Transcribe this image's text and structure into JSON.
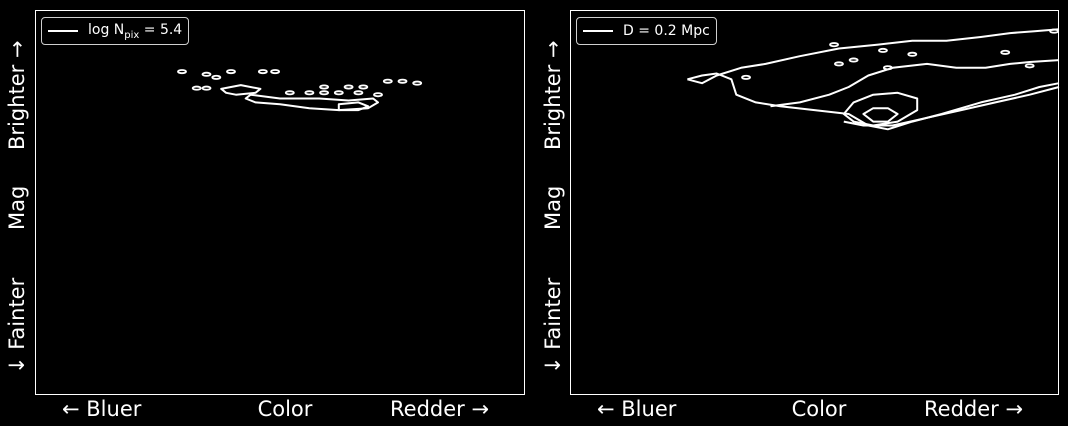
{
  "chart_data": [
    {
      "type": "contour",
      "legend": {
        "entry": "log N",
        "sub": "pix",
        "value": " = 5.4"
      },
      "xlabel": {
        "left": "← Bluer",
        "center": "Color",
        "right": "Redder →"
      },
      "ylabel": {
        "bottom": "↓ Fainter",
        "center": "Mag",
        "top": "Brighter →"
      },
      "line_color": "#ffffff",
      "background": "#000000",
      "grid": false,
      "legend_position": "top-left",
      "contours": [
        {
          "kind": "closed",
          "points": [
            [
              0.44,
              0.22
            ],
            [
              0.5,
              0.23
            ],
            [
              0.58,
              0.23
            ],
            [
              0.64,
              0.235
            ],
            [
              0.69,
              0.23
            ],
            [
              0.7,
              0.24
            ],
            [
              0.68,
              0.255
            ],
            [
              0.62,
              0.26
            ],
            [
              0.56,
              0.255
            ],
            [
              0.5,
              0.245
            ],
            [
              0.45,
              0.24
            ],
            [
              0.43,
              0.23
            ]
          ]
        },
        {
          "kind": "closed",
          "points": [
            [
              0.38,
              0.205
            ],
            [
              0.42,
              0.195
            ],
            [
              0.46,
              0.205
            ],
            [
              0.45,
              0.215
            ],
            [
              0.41,
              0.22
            ],
            [
              0.39,
              0.215
            ]
          ]
        },
        {
          "kind": "closed",
          "points": [
            [
              0.62,
              0.245
            ],
            [
              0.66,
              0.24
            ],
            [
              0.68,
              0.25
            ],
            [
              0.66,
              0.26
            ],
            [
              0.62,
              0.26
            ]
          ]
        },
        {
          "kind": "blob",
          "points": [
            [
              0.3,
              0.16
            ],
            [
              0.35,
              0.167
            ],
            [
              0.37,
              0.175
            ],
            [
              0.4,
              0.16
            ],
            [
              0.465,
              0.16
            ],
            [
              0.49,
              0.16
            ],
            [
              0.59,
              0.2
            ],
            [
              0.64,
              0.2
            ],
            [
              0.67,
              0.2
            ],
            [
              0.72,
              0.185
            ],
            [
              0.75,
              0.185
            ],
            [
              0.78,
              0.19
            ],
            [
              0.33,
              0.203
            ],
            [
              0.35,
              0.203
            ],
            [
              0.52,
              0.215
            ],
            [
              0.56,
              0.215
            ],
            [
              0.59,
              0.215
            ],
            [
              0.62,
              0.215
            ],
            [
              0.66,
              0.215
            ],
            [
              0.7,
              0.22
            ]
          ]
        }
      ]
    },
    {
      "type": "contour",
      "legend": {
        "entry": "D = 0.2 Mpc"
      },
      "xlabel": {
        "left": "← Bluer",
        "center": "Color",
        "right": "Redder →"
      },
      "ylabel": {
        "bottom": "↓ Fainter",
        "center": "Mag",
        "top": "Brighter →"
      },
      "line_color": "#ffffff",
      "background": "#000000",
      "grid": false,
      "legend_position": "top-left",
      "contours": [
        {
          "kind": "open",
          "points": [
            [
              0.24,
              0.18
            ],
            [
              0.27,
              0.17
            ],
            [
              0.3,
              0.165
            ],
            [
              0.33,
              0.18
            ],
            [
              0.34,
              0.22
            ],
            [
              0.38,
              0.24
            ],
            [
              0.43,
              0.25
            ],
            [
              0.5,
              0.26
            ],
            [
              0.57,
              0.27
            ],
            [
              0.61,
              0.3
            ],
            [
              0.65,
              0.31
            ],
            [
              0.7,
              0.29
            ],
            [
              0.76,
              0.27
            ],
            [
              0.84,
              0.24
            ],
            [
              0.91,
              0.22
            ],
            [
              0.96,
              0.2
            ],
            [
              1.0,
              0.19
            ]
          ]
        },
        {
          "kind": "open",
          "points": [
            [
              0.24,
              0.18
            ],
            [
              0.27,
              0.19
            ],
            [
              0.3,
              0.17
            ],
            [
              0.35,
              0.15
            ],
            [
              0.4,
              0.14
            ],
            [
              0.47,
              0.12
            ],
            [
              0.55,
              0.1
            ],
            [
              0.63,
              0.09
            ],
            [
              0.7,
              0.08
            ],
            [
              0.77,
              0.08
            ],
            [
              0.84,
              0.07
            ],
            [
              0.9,
              0.06
            ],
            [
              0.95,
              0.055
            ],
            [
              1.0,
              0.05
            ]
          ]
        },
        {
          "kind": "open",
          "points": [
            [
              0.41,
              0.25
            ],
            [
              0.47,
              0.24
            ],
            [
              0.53,
              0.22
            ],
            [
              0.57,
              0.2
            ],
            [
              0.61,
              0.17
            ],
            [
              0.66,
              0.15
            ],
            [
              0.73,
              0.14
            ],
            [
              0.79,
              0.15
            ],
            [
              0.85,
              0.15
            ],
            [
              0.9,
              0.14
            ],
            [
              0.94,
              0.135
            ],
            [
              1.0,
              0.13
            ]
          ]
        },
        {
          "kind": "open",
          "points": [
            [
              0.56,
              0.29
            ],
            [
              0.6,
              0.3
            ],
            [
              0.66,
              0.3
            ],
            [
              0.73,
              0.28
            ],
            [
              0.8,
              0.26
            ],
            [
              0.87,
              0.24
            ],
            [
              0.94,
              0.22
            ],
            [
              1.0,
              0.2
            ]
          ]
        },
        {
          "kind": "closed",
          "points": [
            [
              0.56,
              0.27
            ],
            [
              0.58,
              0.24
            ],
            [
              0.62,
              0.22
            ],
            [
              0.67,
              0.215
            ],
            [
              0.71,
              0.23
            ],
            [
              0.71,
              0.26
            ],
            [
              0.67,
              0.29
            ],
            [
              0.62,
              0.3
            ],
            [
              0.58,
              0.29
            ]
          ]
        },
        {
          "kind": "closed",
          "points": [
            [
              0.6,
              0.27
            ],
            [
              0.62,
              0.255
            ],
            [
              0.65,
              0.255
            ],
            [
              0.67,
              0.27
            ],
            [
              0.65,
              0.29
            ],
            [
              0.62,
              0.29
            ]
          ]
        },
        {
          "kind": "blob",
          "points": [
            [
              0.54,
              0.09
            ],
            [
              0.64,
              0.105
            ],
            [
              0.7,
              0.115
            ],
            [
              0.65,
              0.15
            ],
            [
              0.89,
              0.11
            ],
            [
              0.94,
              0.145
            ],
            [
              0.99,
              0.055
            ],
            [
              0.55,
              0.14
            ],
            [
              0.58,
              0.13
            ],
            [
              0.36,
              0.175
            ]
          ]
        }
      ]
    }
  ]
}
